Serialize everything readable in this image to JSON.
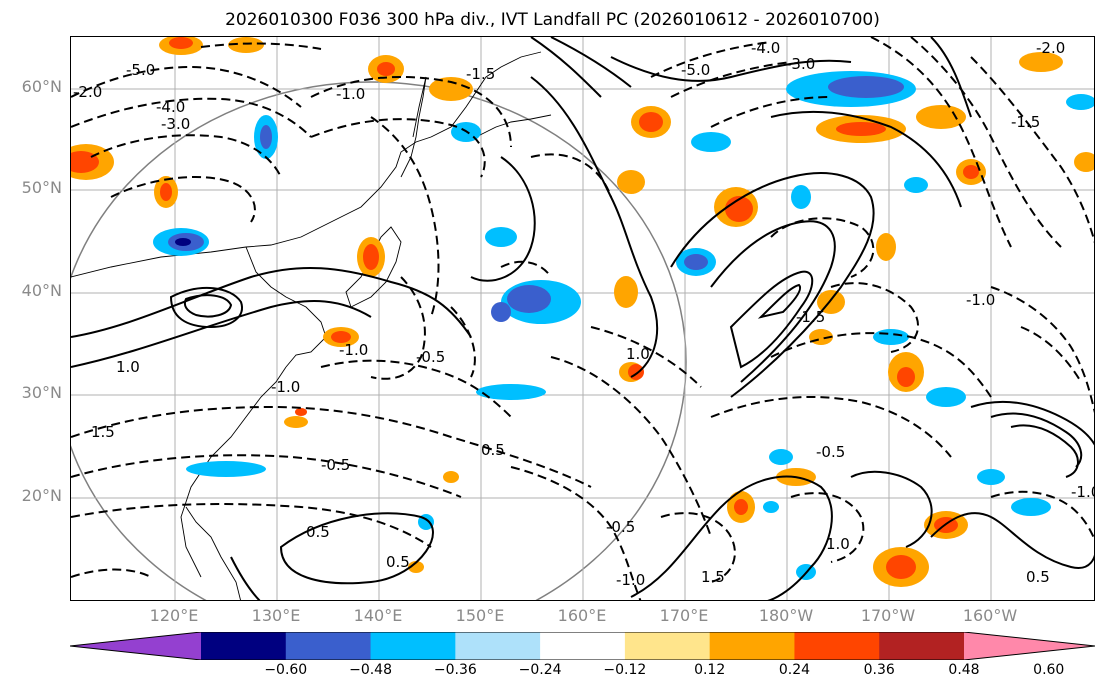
{
  "title": "2026010300 F036 300 hPa div., IVT Landfall PC (2026010612 - 2026010700)",
  "lat_labels": [
    "60°N",
    "50°N",
    "40°N",
    "30°N",
    "20°N"
  ],
  "lon_labels": [
    "120°E",
    "130°E",
    "140°E",
    "150°E",
    "160°E",
    "170°E",
    "180°W",
    "170°W",
    "160°W"
  ],
  "colorbar": {
    "colors": [
      "#9440d0",
      "#000080",
      "#3a5fcd",
      "#00bfff",
      "#aee1fa",
      "#ffffff",
      "#ffe58c",
      "#ffa500",
      "#ff4500",
      "#b22222",
      "#ff88aa"
    ],
    "ticks": [
      "−0.60",
      "−0.48",
      "−0.36",
      "−0.24",
      "−0.12",
      "0.12",
      "0.24",
      "0.36",
      "0.48",
      "0.60"
    ]
  },
  "contour_labels": [
    "-5.0",
    "-2.0",
    "-4.0",
    "-3.0",
    "-1.0",
    "-1.5",
    "-1.0",
    "-0.5",
    "0.5",
    "1.0",
    "1.5",
    "-1.0",
    "-0.5",
    "0.5",
    "-1.0",
    "-0.5",
    "0.5",
    "1.0",
    "-3.0",
    "-4.0",
    "-5.0",
    "-2.0",
    "-1.5",
    "-1.0",
    "1.0",
    "1.5",
    "-0.5",
    "-1.5",
    "-1.0",
    "0.5"
  ]
}
